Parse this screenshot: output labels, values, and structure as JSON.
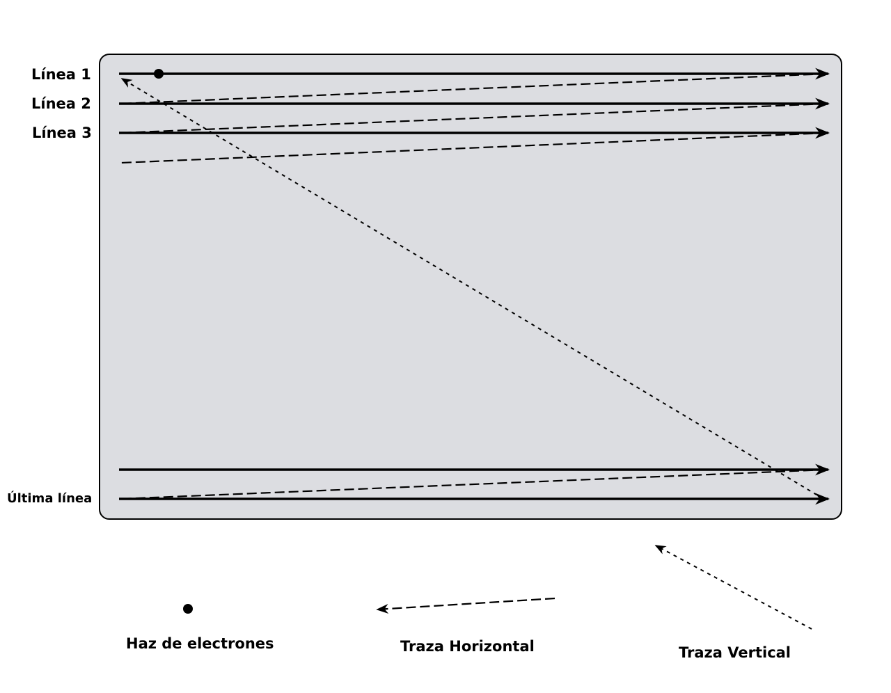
{
  "labels": {
    "line1": "Línea 1",
    "line2": "Línea 2",
    "line3": "Línea 3",
    "last_line": "Última línea"
  },
  "legend": {
    "beam": "Haz de electrones",
    "horizontal_trace": "Traza Horizontal",
    "vertical_trace": "Traza Vertical"
  },
  "colors": {
    "screen_fill": "#dcdde1",
    "stroke": "#000000"
  }
}
